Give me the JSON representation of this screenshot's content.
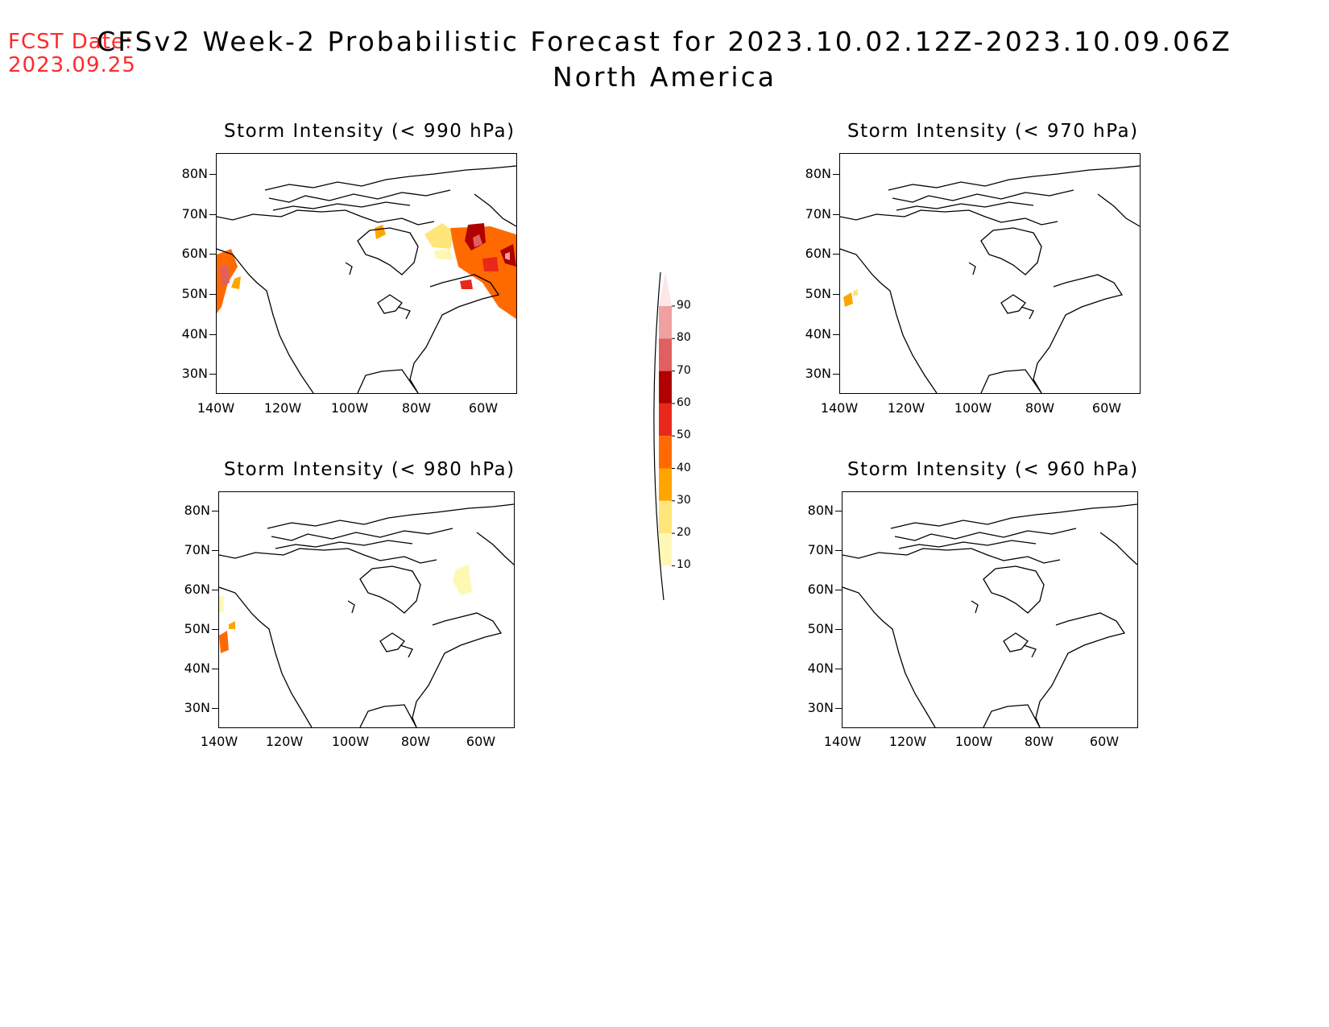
{
  "fcst_date": {
    "label": "FCST Date:",
    "value": "2023.09.25"
  },
  "title": {
    "line1": "CFSv2 Week-2 Probabilistic Forecast for 2023.10.02.12Z-2023.10.09.06Z",
    "line2": "North America"
  },
  "lat_labels": [
    "80N",
    "70N",
    "60N",
    "50N",
    "40N",
    "30N"
  ],
  "lon_labels": [
    "140W",
    "120W",
    "100W",
    "80W",
    "60W"
  ],
  "panels": [
    {
      "title": "Storm Intensity (< 990 hPa)"
    },
    {
      "title": "Storm Intensity (< 970 hPa)"
    },
    {
      "title": "Storm Intensity (< 980 hPa)"
    },
    {
      "title": "Storm Intensity (< 960 hPa)"
    }
  ],
  "colorbar": {
    "levels": [
      "10",
      "20",
      "30",
      "40",
      "50",
      "60",
      "70",
      "80",
      "90"
    ],
    "colors": [
      "#fff8b4",
      "#ffe57a",
      "#ffa500",
      "#ff6a00",
      "#e8281a",
      "#b00000",
      "#e06060",
      "#f0a0a0",
      "#fde6e6"
    ]
  }
}
